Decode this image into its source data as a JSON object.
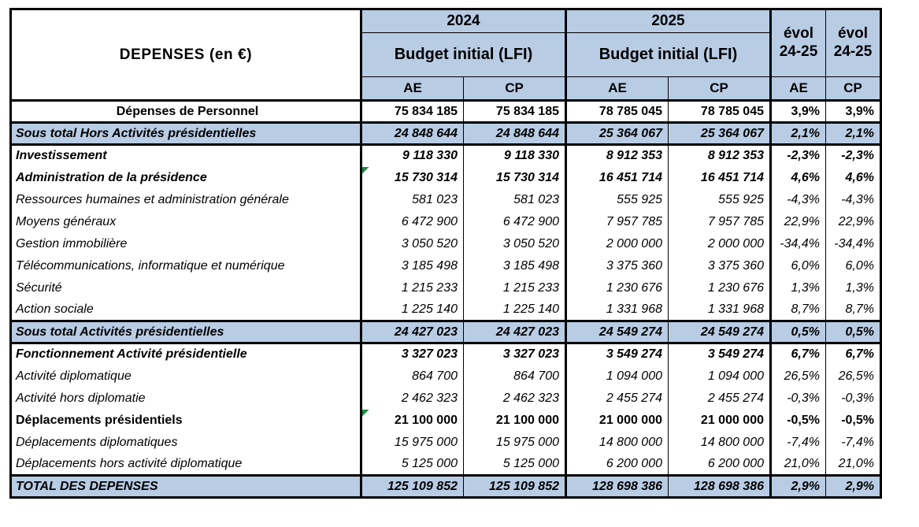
{
  "colors": {
    "header_bg": "#b8cce4",
    "subtotal_bg": "#b8cce4",
    "border": "#000000",
    "flag_green": "#1e8a3c"
  },
  "table": {
    "title_cell": "DEPENSES (en €)",
    "year_headers": [
      "2024",
      "2025"
    ],
    "budget_header": "Budget initial (LFI)",
    "evol_header": {
      "line1": "évol",
      "line2": "24-25"
    },
    "sub_headers": [
      "AE",
      "CP",
      "AE",
      "CP",
      "AE",
      "CP"
    ],
    "rows": [
      {
        "label": "Dépenses de Personnel",
        "style": "personnel",
        "flag": false,
        "values": [
          "75 834 185",
          "75 834 185",
          "78 785 045",
          "78 785 045",
          "3,9%",
          "3,9%"
        ]
      },
      {
        "label": "Sous total Hors Activités présidentielles",
        "style": "subtotal",
        "flag": false,
        "values": [
          "24 848 644",
          "24 848 644",
          "25 364 067",
          "25 364 067",
          "2,1%",
          "2,1%"
        ]
      },
      {
        "label": "Investissement",
        "style": "bold-italic",
        "flag": false,
        "values": [
          "9 118 330",
          "9 118 330",
          "8 912 353",
          "8 912 353",
          "-2,3%",
          "-2,3%"
        ]
      },
      {
        "label": "Administration de la présidence",
        "style": "bold-italic",
        "flag": true,
        "values": [
          "15 730 314",
          "15 730 314",
          "16 451 714",
          "16 451 714",
          "4,6%",
          "4,6%"
        ]
      },
      {
        "label": "Ressources humaines et administration générale",
        "style": "italic",
        "flag": false,
        "values": [
          "581 023",
          "581 023",
          "555 925",
          "555 925",
          "-4,3%",
          "-4,3%"
        ]
      },
      {
        "label": "Moyens généraux",
        "style": "italic",
        "flag": false,
        "values": [
          "6 472 900",
          "6 472 900",
          "7 957 785",
          "7 957 785",
          "22,9%",
          "22,9%"
        ]
      },
      {
        "label": "Gestion immobilière",
        "style": "italic",
        "flag": false,
        "values": [
          "3 050 520",
          "3 050 520",
          "2 000 000",
          "2 000 000",
          "-34,4%",
          "-34,4%"
        ]
      },
      {
        "label": "Télécommunications, informatique et numérique",
        "style": "italic",
        "flag": false,
        "values": [
          "3 185 498",
          "3 185 498",
          "3 375 360",
          "3 375 360",
          "6,0%",
          "6,0%"
        ]
      },
      {
        "label": "Sécurité",
        "style": "italic",
        "flag": false,
        "values": [
          "1 215 233",
          "1 215 233",
          "1 230 676",
          "1 230 676",
          "1,3%",
          "1,3%"
        ]
      },
      {
        "label": "Action sociale",
        "style": "italic",
        "flag": false,
        "values": [
          "1 225 140",
          "1 225 140",
          "1 331 968",
          "1 331 968",
          "8,7%",
          "8,7%"
        ]
      },
      {
        "label": "Sous total Activités présidentielles",
        "style": "subtotal",
        "flag": false,
        "values": [
          "24 427 023",
          "24 427 023",
          "24 549 274",
          "24 549 274",
          "0,5%",
          "0,5%"
        ]
      },
      {
        "label": "Fonctionnement Activité présidentielle",
        "style": "bold-italic",
        "flag": false,
        "values": [
          "3 327 023",
          "3 327 023",
          "3 549 274",
          "3 549 274",
          "6,7%",
          "6,7%"
        ]
      },
      {
        "label": "Activité diplomatique",
        "style": "italic",
        "flag": false,
        "values": [
          "864 700",
          "864 700",
          "1 094 000",
          "1 094 000",
          "26,5%",
          "26,5%"
        ]
      },
      {
        "label": "Activité hors diplomatie",
        "style": "italic",
        "flag": false,
        "values": [
          "2 462 323",
          "2 462 323",
          "2 455 274",
          "2 455 274",
          "-0,3%",
          "-0,3%"
        ]
      },
      {
        "label": "Déplacements présidentiels",
        "style": "bold",
        "flag": true,
        "values": [
          "21 100 000",
          "21 100 000",
          "21 000 000",
          "21 000 000",
          "-0,5%",
          "-0,5%"
        ]
      },
      {
        "label": "Déplacements diplomatiques",
        "style": "italic",
        "flag": false,
        "values": [
          "15 975 000",
          "15 975 000",
          "14 800 000",
          "14 800 000",
          "-7,4%",
          "-7,4%"
        ]
      },
      {
        "label": "Déplacements hors activité diplomatique",
        "style": "italic",
        "flag": false,
        "values": [
          "5 125 000",
          "5 125 000",
          "6 200 000",
          "6 200 000",
          "21,0%",
          "21,0%"
        ]
      },
      {
        "label": "TOTAL DES DEPENSES",
        "style": "total",
        "flag": false,
        "values": [
          "125 109 852",
          "125 109 852",
          "128 698 386",
          "128 698 386",
          "2,9%",
          "2,9%"
        ]
      }
    ]
  }
}
